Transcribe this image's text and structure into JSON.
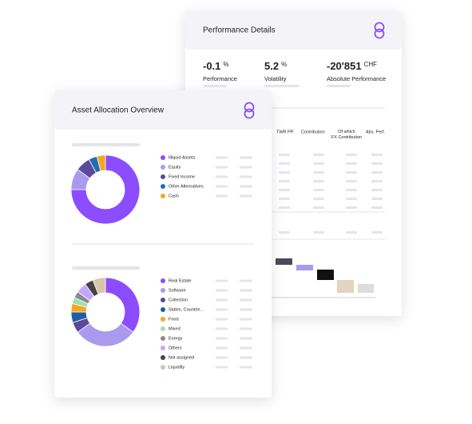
{
  "performance": {
    "title": "Performance Details",
    "stats": [
      {
        "value": "-0.1",
        "unit": "%",
        "label": "Performance"
      },
      {
        "value": "5.2",
        "unit": "%",
        "label": "Volatility"
      },
      {
        "value": "-20'851",
        "unit": "CHF",
        "label": "Absolute Performance"
      }
    ],
    "table_headers": [
      "TWR PP",
      "Contribution",
      "Of which FX Contribution",
      "Abs. Perf."
    ]
  },
  "allocation": {
    "title": "Asset Allocation Overview",
    "charts": [
      {
        "type": "donut",
        "slices": [
          {
            "name": "Illiquid Assets",
            "value": 75,
            "color": "#8b4dff"
          },
          {
            "name": "Equity",
            "value": 10,
            "color": "#a99aee"
          },
          {
            "name": "Fixed Income",
            "value": 7,
            "color": "#5b4a9a"
          },
          {
            "name": "Other Alternatives",
            "value": 4,
            "color": "#1f6fb2"
          },
          {
            "name": "Cash",
            "value": 4,
            "color": "#f5a623"
          }
        ]
      },
      {
        "type": "donut",
        "slices": [
          {
            "name": "Real Estate",
            "value": 35,
            "color": "#8b4dff"
          },
          {
            "name": "Software",
            "value": 30,
            "color": "#a99aee"
          },
          {
            "name": "Collection",
            "value": 5,
            "color": "#5b4a9a"
          },
          {
            "name": "States, Countrie...",
            "value": 5,
            "color": "#1f5fa0"
          },
          {
            "name": "Food",
            "value": 4,
            "color": "#f5a623"
          },
          {
            "name": "Mixed",
            "value": 3,
            "color": "#9fe0b0"
          },
          {
            "name": "Energy",
            "value": 3,
            "color": "#8a8a8a"
          },
          {
            "name": "Others",
            "value": 5,
            "color": "#c3a6ff"
          },
          {
            "name": "Not assigned",
            "value": 4,
            "color": "#444444"
          },
          {
            "name": "Liquidity",
            "value": 6,
            "color": "#d9c6a8"
          }
        ]
      }
    ]
  }
}
